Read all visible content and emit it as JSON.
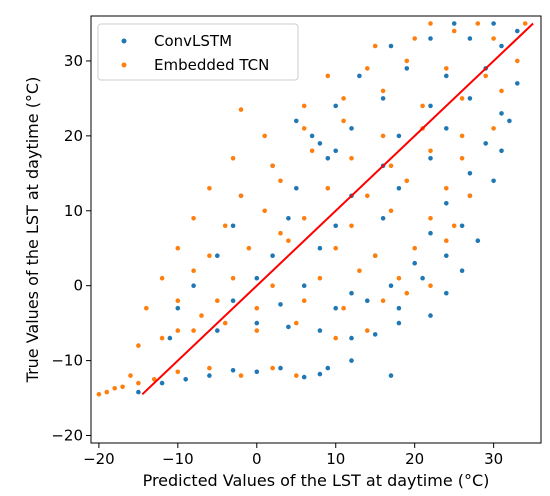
{
  "chart_data": {
    "type": "scatter",
    "xlabel": "Predicted Values of the LST at daytime ($^\\circ$C)",
    "ylabel": "True Values of the LST at daytime ($^\\circ$C)",
    "xlabel_text": "Predicted Values of the LST at daytime (°C)",
    "ylabel_text": "True Values of the LST at daytime (°C)",
    "xlim": [
      -21,
      36
    ],
    "ylim": [
      -21,
      36
    ],
    "x_ticks": [
      -20,
      -10,
      0,
      10,
      20,
      30
    ],
    "y_ticks": [
      -20,
      -10,
      0,
      10,
      20,
      30
    ],
    "x_tick_labels": [
      "−20",
      "−10",
      "0",
      "10",
      "20",
      "30"
    ],
    "y_tick_labels": [
      "−20",
      "−10",
      "0",
      "10",
      "20",
      "30"
    ],
    "grid": false,
    "legend_position": "upper-left",
    "series": [
      {
        "name": "ConvLSTM",
        "color": "#1f77b4",
        "marker": "dot",
        "points": [
          [
            -15,
            -14.2
          ],
          [
            -12,
            -13
          ],
          [
            -9,
            -12.5
          ],
          [
            -6,
            -12
          ],
          [
            -3,
            -11.3
          ],
          [
            0,
            -11.5
          ],
          [
            3,
            -11
          ],
          [
            6,
            -12.2
          ],
          [
            8,
            -11.8
          ],
          [
            9,
            -11
          ],
          [
            -11,
            -7
          ],
          [
            -5,
            -6
          ],
          [
            0,
            -5
          ],
          [
            4,
            -5.5
          ],
          [
            8,
            -6
          ],
          [
            12,
            -7
          ],
          [
            15,
            -6.5
          ],
          [
            18,
            -5
          ],
          [
            -10,
            -3
          ],
          [
            -3,
            -2
          ],
          [
            3,
            -2.5
          ],
          [
            10,
            -3
          ],
          [
            14,
            -2
          ],
          [
            18,
            -3
          ],
          [
            22,
            -4
          ],
          [
            -8,
            0
          ],
          [
            0,
            1
          ],
          [
            6,
            0
          ],
          [
            12,
            -1
          ],
          [
            17,
            0
          ],
          [
            21,
            1
          ],
          [
            24,
            -1
          ],
          [
            -5,
            4
          ],
          [
            2,
            4
          ],
          [
            8,
            5
          ],
          [
            15,
            4
          ],
          [
            20,
            3
          ],
          [
            24,
            4
          ],
          [
            26,
            2
          ],
          [
            -3,
            8
          ],
          [
            4,
            9
          ],
          [
            10,
            8
          ],
          [
            16,
            9
          ],
          [
            22,
            7
          ],
          [
            26,
            8
          ],
          [
            28,
            6
          ],
          [
            -2,
            12
          ],
          [
            5,
            13
          ],
          [
            12,
            12
          ],
          [
            18,
            13
          ],
          [
            24,
            11
          ],
          [
            27,
            12
          ],
          [
            2,
            16
          ],
          [
            9,
            17
          ],
          [
            16,
            16
          ],
          [
            22,
            17
          ],
          [
            27,
            15
          ],
          [
            30,
            14
          ],
          [
            7,
            20
          ],
          [
            12,
            21
          ],
          [
            18,
            20
          ],
          [
            24,
            21
          ],
          [
            29,
            19
          ],
          [
            31,
            18
          ],
          [
            10,
            24
          ],
          [
            16,
            25
          ],
          [
            22,
            24
          ],
          [
            27,
            25
          ],
          [
            31,
            23
          ],
          [
            32,
            22
          ],
          [
            13,
            28
          ],
          [
            19,
            29
          ],
          [
            24,
            28
          ],
          [
            29,
            29
          ],
          [
            33,
            27
          ],
          [
            17,
            32
          ],
          [
            22,
            33
          ],
          [
            27,
            33
          ],
          [
            31,
            32
          ],
          [
            33,
            34
          ],
          [
            25,
            35
          ],
          [
            30,
            35
          ],
          [
            5,
            22
          ],
          [
            8,
            19
          ],
          [
            10,
            18
          ],
          [
            12,
            -10
          ],
          [
            17,
            -12
          ]
        ]
      },
      {
        "name": "Embedded TCN",
        "color": "#ff7f0e",
        "marker": "dot",
        "points": [
          [
            -19,
            -14.2
          ],
          [
            -17,
            -13.5
          ],
          [
            -15,
            -13
          ],
          [
            -13,
            -12.5
          ],
          [
            -10,
            -11.5
          ],
          [
            -6,
            -11
          ],
          [
            -2,
            -12
          ],
          [
            2,
            -11
          ],
          [
            5,
            -12
          ],
          [
            -15,
            -8
          ],
          [
            -12,
            -7
          ],
          [
            -8,
            -6
          ],
          [
            -4,
            -5
          ],
          [
            0,
            -6
          ],
          [
            5,
            -5
          ],
          [
            10,
            -7
          ],
          [
            14,
            -6
          ],
          [
            -14,
            -3
          ],
          [
            -10,
            -2
          ],
          [
            -5,
            -2
          ],
          [
            0,
            -3
          ],
          [
            6,
            -2
          ],
          [
            11,
            -3
          ],
          [
            16,
            -2
          ],
          [
            19,
            -1
          ],
          [
            -12,
            1
          ],
          [
            -8,
            2
          ],
          [
            -3,
            1
          ],
          [
            2,
            0
          ],
          [
            8,
            1
          ],
          [
            13,
            2
          ],
          [
            18,
            1
          ],
          [
            22,
            0
          ],
          [
            -10,
            5
          ],
          [
            -6,
            4
          ],
          [
            -1,
            5
          ],
          [
            4,
            6
          ],
          [
            10,
            5
          ],
          [
            15,
            4
          ],
          [
            20,
            5
          ],
          [
            24,
            6
          ],
          [
            -8,
            9
          ],
          [
            -4,
            8
          ],
          [
            1,
            10
          ],
          [
            6,
            9
          ],
          [
            12,
            8
          ],
          [
            17,
            10
          ],
          [
            22,
            9
          ],
          [
            25,
            8
          ],
          [
            -6,
            13
          ],
          [
            -2,
            12
          ],
          [
            3,
            14
          ],
          [
            9,
            13
          ],
          [
            14,
            12
          ],
          [
            19,
            14
          ],
          [
            24,
            13
          ],
          [
            27,
            12
          ],
          [
            -3,
            17
          ],
          [
            2,
            16
          ],
          [
            7,
            18
          ],
          [
            12,
            17
          ],
          [
            17,
            16
          ],
          [
            22,
            18
          ],
          [
            26,
            17
          ],
          [
            1,
            20
          ],
          [
            6,
            21
          ],
          [
            11,
            22
          ],
          [
            16,
            20
          ],
          [
            21,
            21
          ],
          [
            26,
            20
          ],
          [
            30,
            21
          ],
          [
            -2,
            23.5
          ],
          [
            6,
            24
          ],
          [
            11,
            25
          ],
          [
            16,
            26
          ],
          [
            21,
            24
          ],
          [
            26,
            25
          ],
          [
            31,
            26
          ],
          [
            9,
            28
          ],
          [
            14,
            29
          ],
          [
            19,
            30
          ],
          [
            24,
            29
          ],
          [
            29,
            28
          ],
          [
            33,
            30
          ],
          [
            15,
            32
          ],
          [
            20,
            33
          ],
          [
            25,
            34
          ],
          [
            30,
            33
          ],
          [
            34,
            35
          ],
          [
            22,
            35
          ],
          [
            28,
            35
          ],
          [
            -18,
            -13.7
          ],
          [
            -20,
            -14.5
          ],
          [
            -16,
            -12
          ],
          [
            -10,
            -6
          ],
          [
            -7,
            -4
          ],
          [
            3,
            7
          ]
        ]
      }
    ],
    "reference_line": {
      "color": "#ff0000",
      "from": [
        -14.5,
        -14.5
      ],
      "to": [
        35,
        35
      ]
    }
  }
}
